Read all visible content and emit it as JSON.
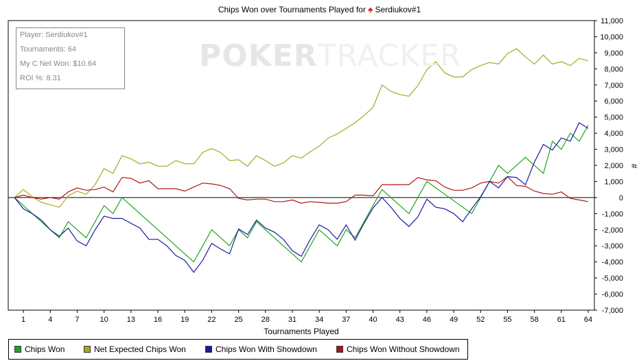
{
  "title": "Chips Won over Tournaments Played for",
  "player_name": "Serdiukov#1",
  "watermark": {
    "part1": "POKER",
    "part2": "TRACKER"
  },
  "info_box": {
    "player": "Player: Serdiukov#1",
    "tournaments": "Tournaments: 64",
    "net_won": "My C Net Won: $10.64",
    "roi": "ROI %: 8.31"
  },
  "legend": [
    {
      "label": "Chips Won",
      "color": "#1fa31f"
    },
    {
      "label": "Net Expected Chips Won",
      "color": "#a8a81e"
    },
    {
      "label": "Chips Won With Showdown",
      "color": "#1a1a9e"
    },
    {
      "label": "Chips Won Without Showdown",
      "color": "#b01414"
    }
  ],
  "chart_data": {
    "type": "line",
    "xlabel": "Tournaments Played",
    "ylabel": "#",
    "xlim": [
      0,
      64
    ],
    "ylim": [
      -7000,
      11000
    ],
    "xticks": [
      1,
      4,
      7,
      10,
      13,
      16,
      19,
      22,
      25,
      28,
      31,
      34,
      37,
      40,
      43,
      46,
      49,
      52,
      55,
      58,
      61,
      64
    ],
    "xtick_labels": [
      "1",
      "4",
      "7",
      "10",
      "13",
      "16",
      "19",
      "22",
      "25",
      "28",
      "31",
      "34",
      "37",
      "40",
      "43",
      "46",
      "49",
      "52",
      "55",
      "58",
      "61",
      "64"
    ],
    "yticks": [
      -7000,
      -6000,
      -5000,
      -4000,
      -3000,
      -2000,
      -1000,
      0,
      1000,
      2000,
      3000,
      4000,
      5000,
      6000,
      7000,
      8000,
      9000,
      10000,
      11000
    ],
    "ytick_labels": [
      "-7,000",
      "-6,000",
      "-5,000",
      "-4,000",
      "-3,000",
      "-2,000",
      "-1,000",
      "0",
      "1,000",
      "2,000",
      "3,000",
      "4,000",
      "5,000",
      "6,000",
      "7,000",
      "8,000",
      "9,000",
      "10,000",
      "11,000"
    ],
    "grid": false,
    "legend_position": "bottom",
    "series": [
      {
        "name": "Chips Won",
        "color": "#1fa31f",
        "x": [
          0,
          1,
          2,
          3,
          4,
          5,
          6,
          7,
          8,
          9,
          10,
          11,
          12,
          20,
          22,
          24,
          25,
          26,
          27,
          32,
          34,
          36,
          37,
          38,
          39,
          40,
          41,
          42,
          44,
          46,
          51,
          53,
          54,
          55,
          57,
          59,
          60,
          61,
          62,
          63,
          64
        ],
        "values": [
          0,
          -500,
          -1000,
          -1500,
          -2000,
          -2500,
          -1500,
          -2000,
          -2500,
          -1500,
          -500,
          -1000,
          0,
          -4000,
          -2000,
          -3000,
          -2000,
          -2500,
          -1500,
          -4000,
          -2000,
          -3000,
          -2000,
          -2500,
          -1500,
          -500,
          500,
          0,
          -1000,
          1000,
          -1000,
          1000,
          2000,
          1500,
          2500,
          1500,
          3500,
          3000,
          4000,
          3500,
          4500
        ]
      },
      {
        "name": "Net Expected Chips Won",
        "color": "#a8a81e",
        "x": [
          0,
          1,
          2,
          3,
          4,
          5,
          6,
          7,
          8,
          9,
          10,
          11,
          12,
          13,
          14,
          15,
          16,
          17,
          18,
          19,
          20,
          21,
          22,
          23,
          24,
          25,
          26,
          27,
          28,
          29,
          30,
          31,
          32,
          33,
          34,
          35,
          36,
          37,
          38,
          39,
          40,
          41,
          42,
          43,
          44,
          45,
          46,
          47,
          48,
          49,
          50,
          51,
          52,
          53,
          54,
          55,
          56,
          57,
          58,
          59,
          60,
          61,
          62,
          63,
          64
        ],
        "values": [
          0,
          500,
          50,
          -300,
          -450,
          -600,
          100,
          400,
          200,
          800,
          1800,
          1500,
          2600,
          2400,
          2100,
          2200,
          1950,
          1950,
          2300,
          2100,
          2100,
          2800,
          3050,
          2800,
          2300,
          2350,
          1950,
          2600,
          2300,
          1950,
          2150,
          2600,
          2450,
          2850,
          3200,
          3700,
          3950,
          4300,
          4650,
          5100,
          5600,
          7000,
          6600,
          6400,
          6300,
          6950,
          7950,
          8450,
          7750,
          7500,
          7500,
          7950,
          8200,
          8400,
          8300,
          8950,
          9250,
          8750,
          8300,
          8850,
          8300,
          8450,
          8200,
          8650,
          8500
        ]
      },
      {
        "name": "Chips Won With Showdown",
        "color": "#1a1a9e",
        "x": [
          0,
          1,
          2,
          3,
          4,
          5,
          6,
          7,
          8,
          9,
          10,
          11,
          12,
          13,
          14,
          15,
          16,
          17,
          18,
          19,
          20,
          21,
          22,
          23,
          24,
          25,
          26,
          27,
          28,
          29,
          30,
          31,
          32,
          33,
          34,
          35,
          36,
          37,
          38,
          39,
          40,
          41,
          42,
          43,
          44,
          45,
          46,
          47,
          48,
          49,
          50,
          51,
          52,
          53,
          54,
          55,
          56,
          57,
          58,
          59,
          60,
          61,
          62,
          63,
          64
        ],
        "values": [
          0,
          -700,
          -1000,
          -1400,
          -2000,
          -2400,
          -1900,
          -2700,
          -3000,
          -2000,
          -1150,
          -1300,
          -1300,
          -1600,
          -1900,
          -2600,
          -2600,
          -3000,
          -3600,
          -3900,
          -4650,
          -3900,
          -2850,
          -3200,
          -3500,
          -1950,
          -2300,
          -1400,
          -1900,
          -2150,
          -2600,
          -3300,
          -3650,
          -2600,
          -1700,
          -2000,
          -2600,
          -1700,
          -2650,
          -1600,
          -650,
          0,
          -600,
          -1300,
          -1800,
          -1200,
          -100,
          -600,
          -700,
          -1000,
          -1500,
          -700,
          50,
          1000,
          600,
          1300,
          1250,
          800,
          2200,
          3300,
          2950,
          3700,
          3500,
          4650,
          4300
        ]
      },
      {
        "name": "Chips Won Without Showdown",
        "color": "#b01414",
        "x": [
          0,
          1,
          2,
          3,
          4,
          5,
          6,
          7,
          8,
          9,
          10,
          11,
          12,
          13,
          14,
          15,
          16,
          17,
          18,
          19,
          20,
          21,
          22,
          23,
          24,
          25,
          26,
          27,
          28,
          29,
          30,
          31,
          32,
          33,
          34,
          35,
          36,
          37,
          38,
          39,
          40,
          41,
          42,
          43,
          44,
          45,
          46,
          47,
          48,
          49,
          50,
          51,
          52,
          53,
          54,
          55,
          56,
          57,
          58,
          59,
          60,
          61,
          62,
          63,
          64
        ],
        "values": [
          0,
          150,
          0,
          -100,
          0,
          -100,
          350,
          600,
          450,
          500,
          650,
          350,
          1250,
          1200,
          900,
          1050,
          550,
          550,
          550,
          400,
          650,
          900,
          850,
          750,
          550,
          -50,
          -150,
          -100,
          -100,
          -250,
          -250,
          -150,
          -350,
          -250,
          -300,
          -350,
          -350,
          -250,
          150,
          150,
          100,
          800,
          800,
          800,
          800,
          1250,
          1100,
          1050,
          650,
          450,
          450,
          600,
          900,
          1000,
          900,
          1300,
          750,
          700,
          400,
          250,
          200,
          350,
          -50,
          -150,
          -250
        ]
      }
    ]
  }
}
